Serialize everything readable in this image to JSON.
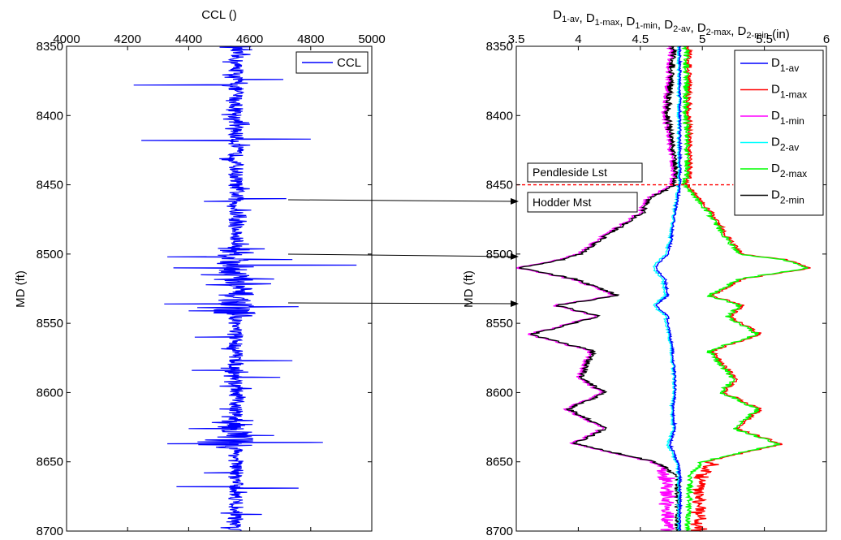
{
  "chart_data": [
    {
      "type": "line",
      "title": "CCL ()",
      "xlabel": "CCL ()",
      "ylabel": "MD (ft)",
      "xlim": [
        4000,
        5000
      ],
      "ylim": [
        8350,
        8700
      ],
      "y_reversed": true,
      "x_ticks": [
        "4000",
        "4200",
        "4400",
        "4600",
        "4800",
        "5000"
      ],
      "y_ticks": [
        "8350",
        "8400",
        "8450",
        "8500",
        "8550",
        "8600",
        "8650",
        "8700"
      ],
      "legend": {
        "position": "top-right",
        "entries": [
          {
            "name": "CCL",
            "color": "#0000ff"
          }
        ]
      },
      "series": [
        {
          "name": "CCL",
          "color": "#0000ff",
          "baseline": 4555,
          "spikes": [
            {
              "md": 8378,
              "x": 4220
            },
            {
              "md": 8374,
              "x": 4710
            },
            {
              "md": 8418,
              "x": 4245
            },
            {
              "md": 8417,
              "x": 4800
            },
            {
              "md": 8460,
              "x": 4720
            },
            {
              "md": 8462,
              "x": 4450
            },
            {
              "md": 8502,
              "x": 4330
            },
            {
              "md": 8504,
              "x": 4740
            },
            {
              "md": 8508,
              "x": 4950
            },
            {
              "md": 8510,
              "x": 4350
            },
            {
              "md": 8515,
              "x": 4440
            },
            {
              "md": 8518,
              "x": 4680
            },
            {
              "md": 8536,
              "x": 4320
            },
            {
              "md": 8538,
              "x": 4760
            },
            {
              "md": 8541,
              "x": 4400
            },
            {
              "md": 8560,
              "x": 4420
            },
            {
              "md": 8577,
              "x": 4740
            },
            {
              "md": 8584,
              "x": 4410
            },
            {
              "md": 8589,
              "x": 4700
            },
            {
              "md": 8626,
              "x": 4400
            },
            {
              "md": 8631,
              "x": 4680
            },
            {
              "md": 8637,
              "x": 4330
            },
            {
              "md": 8636,
              "x": 4840
            },
            {
              "md": 8658,
              "x": 4450
            },
            {
              "md": 8668,
              "x": 4360
            },
            {
              "md": 8669,
              "x": 4760
            },
            {
              "md": 8688,
              "x": 4640
            }
          ]
        }
      ]
    },
    {
      "type": "line",
      "title": "D1-av, D1-max, D1-min, D2-av, D2-max, D2-min (in)",
      "title_parts": [
        {
          "t": "D",
          "s": "1-av"
        },
        {
          "t": ", D",
          "s": "1-max"
        },
        {
          "t": ", D",
          "s": "1-min"
        },
        {
          "t": ", D",
          "s": "2-av"
        },
        {
          "t": ", D",
          "s": "2-max"
        },
        {
          "t": ", D",
          "s": "2-min"
        },
        {
          "t": " (in)",
          "s": ""
        }
      ],
      "ylabel": "MD (ft)",
      "xlim": [
        3.5,
        6
      ],
      "ylim": [
        8350,
        8700
      ],
      "y_reversed": true,
      "x_ticks": [
        "3.5",
        "4",
        "4.5",
        "5",
        "5.5",
        "6"
      ],
      "y_ticks": [
        "8350",
        "8400",
        "8450",
        "8500",
        "8550",
        "8600",
        "8650",
        "8700"
      ],
      "legend": {
        "position": "top-right",
        "entries": [
          {
            "name": "D",
            "sub": "1-av",
            "color": "#0000ff"
          },
          {
            "name": "D",
            "sub": "1-max",
            "color": "#ff0000"
          },
          {
            "name": "D",
            "sub": "1-min",
            "color": "#ff00ff"
          },
          {
            "name": "D",
            "sub": "2-av",
            "color": "#00ffff"
          },
          {
            "name": "D",
            "sub": "2-max",
            "color": "#00ff00"
          },
          {
            "name": "D",
            "sub": "2-min",
            "color": "#000000"
          }
        ]
      },
      "annotations": [
        {
          "text": "Pendleside Lst",
          "md": 8450,
          "line_x": [
            3.5,
            5.25
          ],
          "color": "#ff0000"
        },
        {
          "text": "Hodder Mst"
        }
      ],
      "profile": {
        "md": [
          8350,
          8400,
          8440,
          8450,
          8460,
          8470,
          8490,
          8500,
          8504,
          8510,
          8518,
          8530,
          8537,
          8545,
          8558,
          8570,
          8590,
          8600,
          8612,
          8626,
          8637,
          8650,
          8660,
          8700
        ],
        "max": [
          4.87,
          4.87,
          4.88,
          4.85,
          4.95,
          5.05,
          5.2,
          5.3,
          5.65,
          5.85,
          5.3,
          5.05,
          5.3,
          5.2,
          5.45,
          5.05,
          5.25,
          5.15,
          5.45,
          5.25,
          5.62,
          5.0,
          4.9,
          4.88
        ],
        "min": [
          4.75,
          4.7,
          4.77,
          4.75,
          4.55,
          4.5,
          4.15,
          4.0,
          3.85,
          3.5,
          3.95,
          4.3,
          3.8,
          4.15,
          3.6,
          4.1,
          4.0,
          4.2,
          3.9,
          4.2,
          3.95,
          4.6,
          4.78,
          4.78
        ],
        "d1_av": [
          4.82,
          4.82,
          4.82,
          4.82,
          4.8,
          4.78,
          4.75,
          4.72,
          4.68,
          4.62,
          4.7,
          4.72,
          4.62,
          4.72,
          4.74,
          4.76,
          4.78,
          4.78,
          4.76,
          4.78,
          4.74,
          4.8,
          4.82,
          4.82
        ],
        "d2_av": [
          4.81,
          4.81,
          4.81,
          4.81,
          4.79,
          4.77,
          4.74,
          4.7,
          4.66,
          4.6,
          4.68,
          4.7,
          4.6,
          4.7,
          4.73,
          4.75,
          4.77,
          4.77,
          4.75,
          4.77,
          4.72,
          4.79,
          4.81,
          4.81
        ]
      }
    }
  ]
}
